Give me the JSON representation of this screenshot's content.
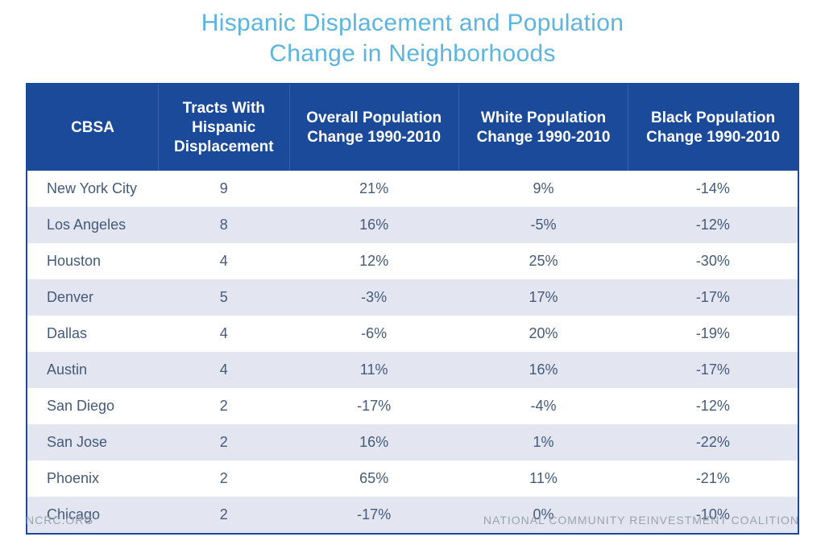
{
  "title_line1": "Hispanic Displacement and Population",
  "title_line2": "Change in Neighborhoods",
  "columns": {
    "cbsa": "CBSA",
    "tracts": "Tracts With Hispanic Displacement",
    "overall": "Overall Population Change 1990-2010",
    "white": "White Population Change 1990-2010",
    "black": "Black Population Change 1990-2010"
  },
  "rows": [
    {
      "cbsa": "New York City",
      "tracts": "9",
      "overall": "21%",
      "white": "9%",
      "black": "-14%"
    },
    {
      "cbsa": "Los Angeles",
      "tracts": "8",
      "overall": "16%",
      "white": "-5%",
      "black": "-12%"
    },
    {
      "cbsa": "Houston",
      "tracts": "4",
      "overall": "12%",
      "white": "25%",
      "black": "-30%"
    },
    {
      "cbsa": "Denver",
      "tracts": "5",
      "overall": "-3%",
      "white": "17%",
      "black": "-17%"
    },
    {
      "cbsa": "Dallas",
      "tracts": "4",
      "overall": "-6%",
      "white": "20%",
      "black": "-19%"
    },
    {
      "cbsa": "Austin",
      "tracts": "4",
      "overall": "11%",
      "white": "16%",
      "black": "-17%"
    },
    {
      "cbsa": "San Diego",
      "tracts": "2",
      "overall": "-17%",
      "white": "-4%",
      "black": "-12%"
    },
    {
      "cbsa": "San Jose",
      "tracts": "2",
      "overall": "16%",
      "white": "1%",
      "black": "-22%"
    },
    {
      "cbsa": "Phoenix",
      "tracts": "2",
      "overall": "65%",
      "white": "11%",
      "black": "-21%"
    },
    {
      "cbsa": "Chicago",
      "tracts": "2",
      "overall": "-17%",
      "white": "0%",
      "black": "-10%"
    }
  ],
  "footer_left": "NCRC.ORG",
  "footer_right": "NATIONAL COMMUNITY REINVESTMENT COALITION",
  "style": {
    "header_bg": "#1b4a9a",
    "header_fg": "#ffffff",
    "title_color": "#5bb5e0",
    "row_odd_bg": "#ffffff",
    "row_even_bg": "#e3e6f0",
    "cell_text_color": "#445a7a",
    "footer_color": "#9aa3ad",
    "title_fontsize": 30,
    "header_fontsize": 19,
    "cell_fontsize": 18,
    "footer_fontsize": 14,
    "border_color": "#1b4a9a"
  }
}
